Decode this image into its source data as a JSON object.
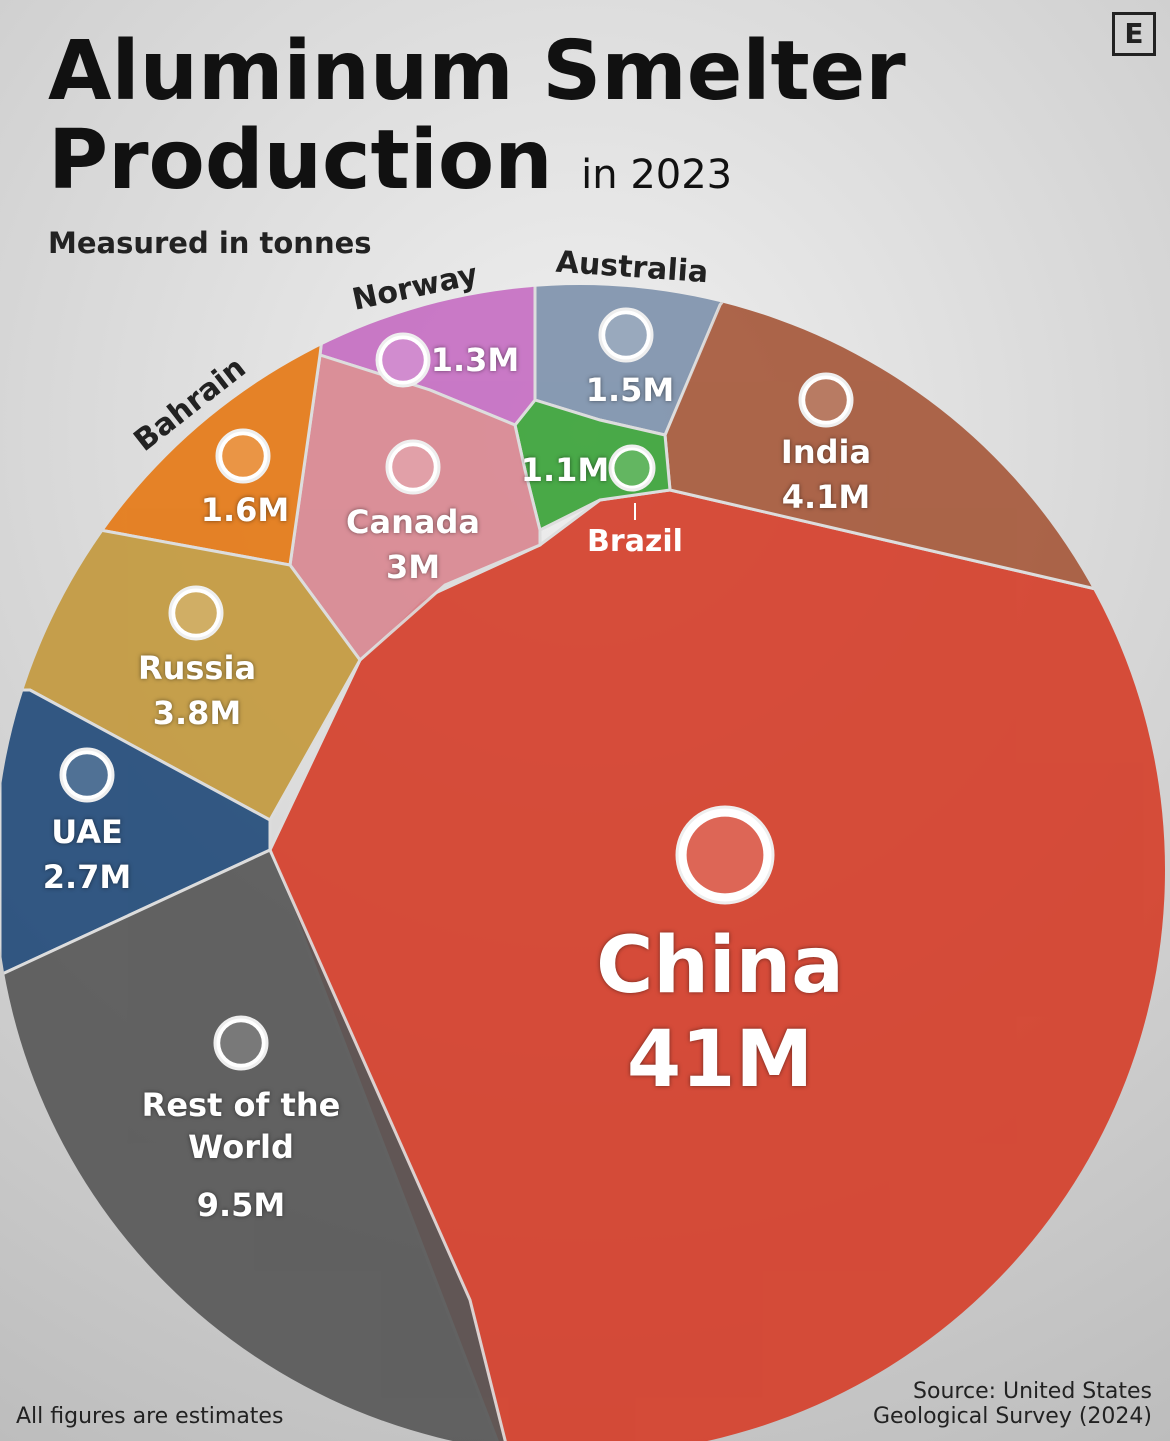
{
  "chart_data": {
    "type": "voronoi",
    "title": "Aluminum Smelter Production",
    "title_suffix": "in 2023",
    "subtitle": "Measured in tonnes",
    "note": "All figures are estimates",
    "source": "Source: United States Geological Survey (2024)",
    "logo": "E",
    "categories": [
      "China",
      "India",
      "Australia",
      "Brazil",
      "Norway",
      "Canada",
      "Bahrain",
      "Russia",
      "UAE",
      "Rest of the World"
    ],
    "values": [
      41000000,
      4100000,
      1500000,
      1100000,
      1300000,
      3000000,
      1600000,
      3800000,
      2700000,
      9500000
    ],
    "value_labels": [
      "41M",
      "4.1M",
      "1.5M",
      "1.1M",
      "1.3M",
      "3M",
      "1.6M",
      "3.8M",
      "2.7M",
      "9.5M"
    ],
    "colors": [
      "#d5402c",
      "#a65a3c",
      "#7f93ad",
      "#3ca43a",
      "#c66fc3",
      "#d98892",
      "#e57a17",
      "#c49a3f",
      "#244d7b",
      "#585858"
    ]
  }
}
